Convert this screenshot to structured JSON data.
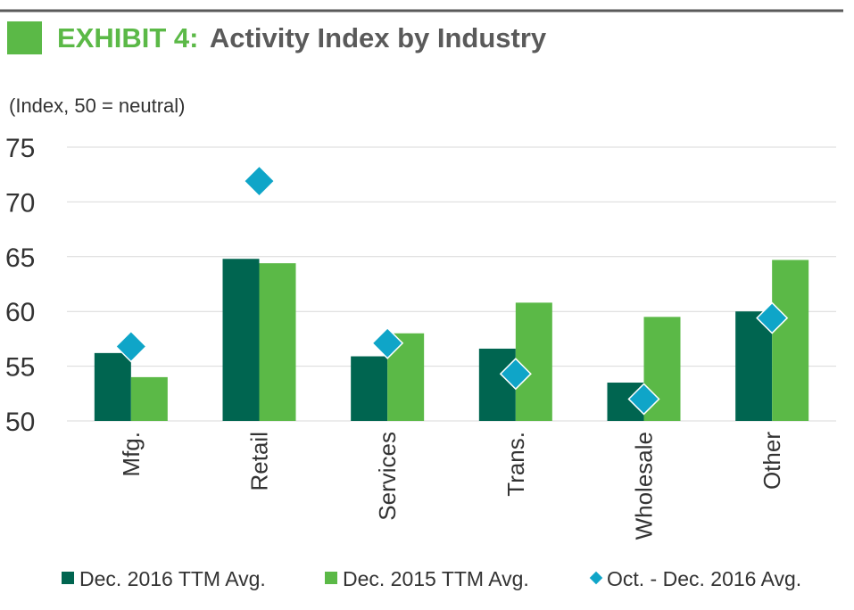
{
  "header": {
    "exhibit_label": "EXHIBIT 4:",
    "title_text": "Activity Index by Industry"
  },
  "colors": {
    "dark_green": "#006550",
    "light_green": "#5bb947",
    "diamond": "#0fa5c8",
    "rule": "#5a5a5a"
  },
  "chart_data": {
    "type": "bar",
    "title": "EXHIBIT 4: Activity Index by Industry",
    "ylabel": "(Index, 50 = neutral)",
    "xlabel": "",
    "ylim": [
      50,
      75
    ],
    "yticks": [
      "50",
      "55",
      "60",
      "65",
      "70",
      "75"
    ],
    "categories": [
      "Mfg.",
      "Retail",
      "Services",
      "Trans.",
      "Wholesale",
      "Other"
    ],
    "grid": true,
    "legend_position": "bottom",
    "series": [
      {
        "name": "Dec. 2016 TTM Avg.",
        "kind": "bar",
        "values": [
          56.2,
          64.8,
          55.9,
          56.6,
          53.5,
          60.0
        ]
      },
      {
        "name": "Dec. 2015 TTM Avg.",
        "kind": "bar",
        "values": [
          54.0,
          64.4,
          58.0,
          60.8,
          59.5,
          64.7
        ]
      },
      {
        "name": "Oct. - Dec. 2016 Avg.",
        "kind": "marker",
        "values": [
          56.8,
          71.9,
          57.1,
          54.3,
          52.0,
          59.4
        ]
      }
    ]
  }
}
